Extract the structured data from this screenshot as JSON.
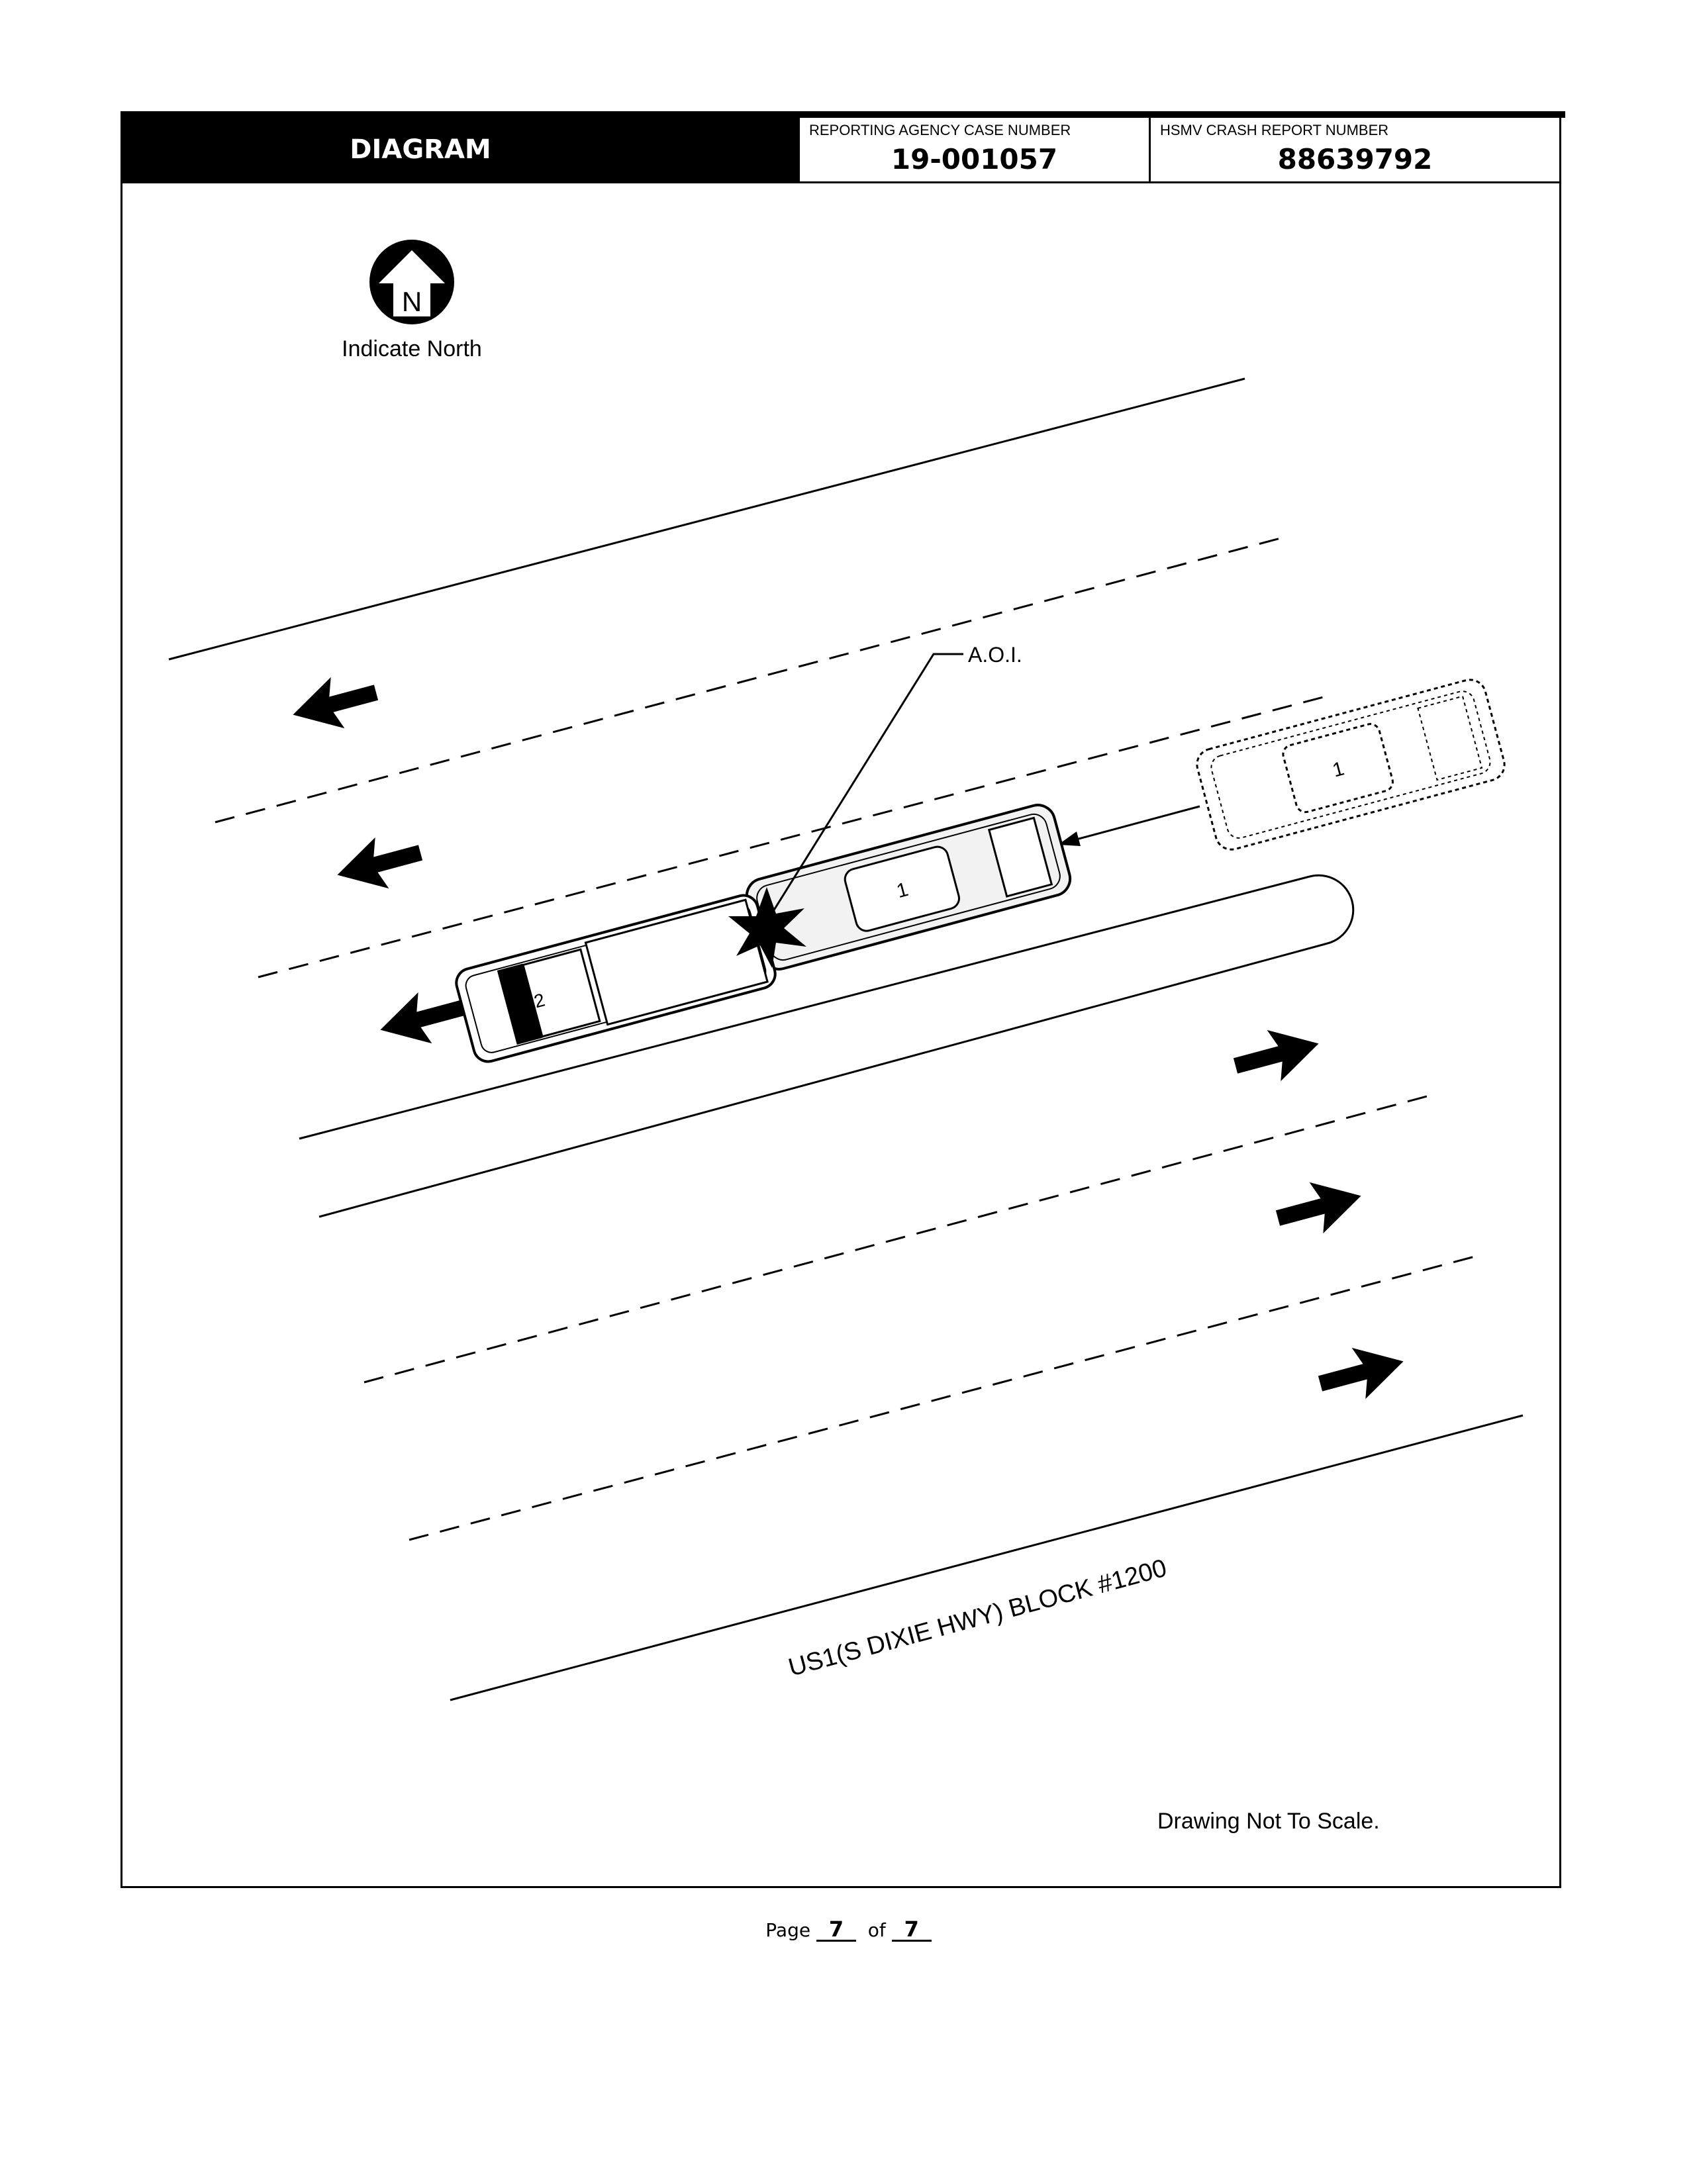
{
  "header": {
    "title": "DIAGRAM",
    "case_label": "REPORTING AGENCY CASE NUMBER",
    "case_number": "19-001057",
    "crash_label": "HSMV CRASH REPORT NUMBER",
    "crash_number": "88639792"
  },
  "diagram": {
    "north_letter": "N",
    "north_label": "Indicate North",
    "aoi_label": "A.O.I.",
    "vehicle_1_label": "1",
    "vehicle_1_prior_label": "1",
    "vehicle_2_label": "2",
    "road_label": "US1(S DIXIE HWY)  BLOCK #1200",
    "scale_note": "Drawing Not To Scale."
  },
  "footer": {
    "page_word": "Page",
    "page_current": "7",
    "of_word": "of",
    "page_total": "7"
  }
}
